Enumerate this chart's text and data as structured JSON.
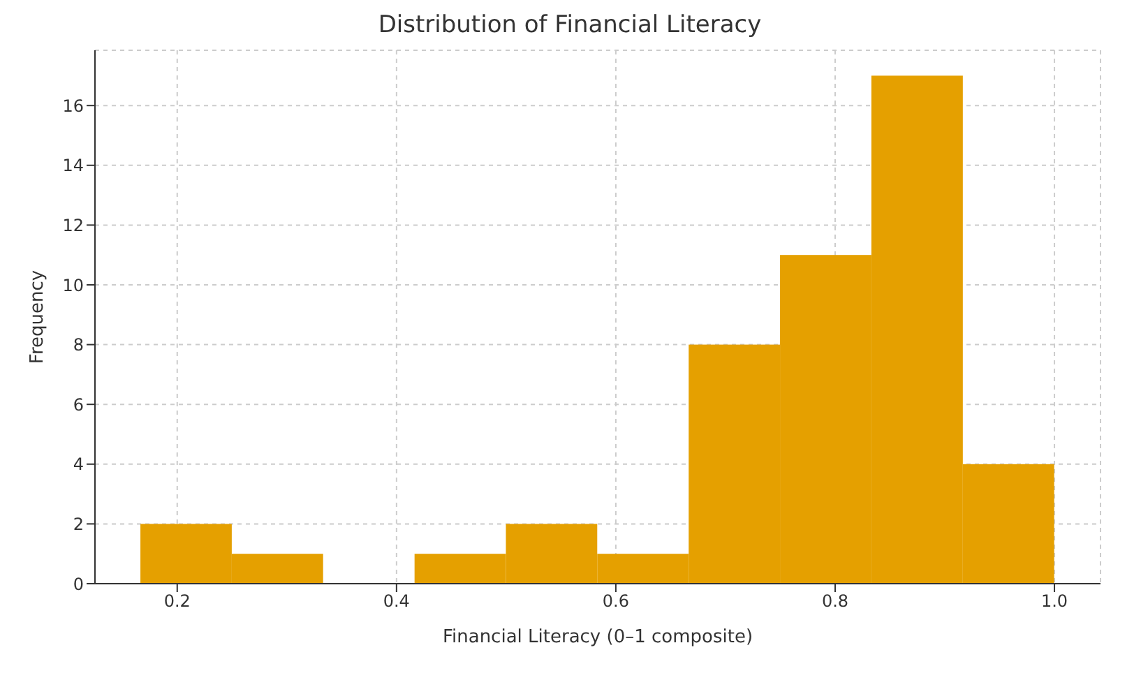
{
  "chart_data": {
    "type": "histogram",
    "title": "Distribution of Financial Literacy",
    "xlabel": "Financial Literacy (0–1 composite)",
    "ylabel": "Frequency",
    "bins": [
      0.1667,
      0.25,
      0.3333,
      0.4167,
      0.5,
      0.5833,
      0.6667,
      0.75,
      0.8333,
      0.9167,
      1.0
    ],
    "values": [
      2,
      1,
      0,
      1,
      2,
      1,
      8,
      11,
      17,
      4
    ],
    "color": "#e5a000",
    "xlim": [
      0.125,
      1.042
    ],
    "xticks": [
      0.2,
      0.4,
      0.6,
      0.8,
      {
        "value": 1,
        "label": "1.0"
      }
    ],
    "ylim": [
      0,
      17.85
    ],
    "yticks": [
      0,
      2,
      4,
      6,
      8,
      10,
      12,
      14,
      16
    ],
    "grid": true
  }
}
